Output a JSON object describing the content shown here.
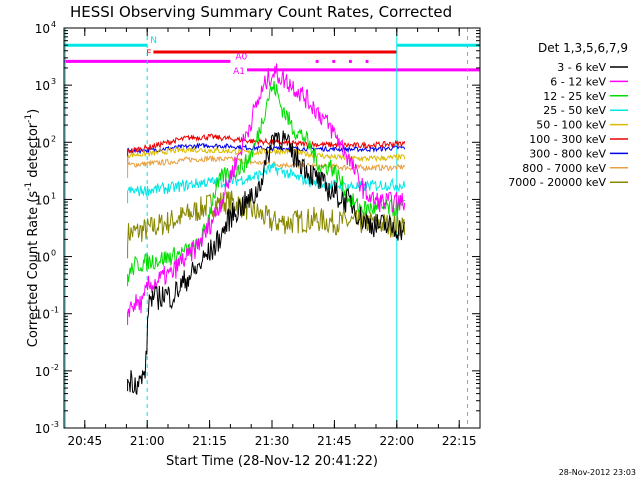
{
  "chart_data": {
    "type": "line",
    "title": "HESSI Observing Summary Count Rates, Corrected",
    "xlabel": "Start Time (28-Nov-12 20:41:22)",
    "ylabel_prefix": "Corrected Count Rate (s",
    "ylabel_sup1": "-1",
    "ylabel_mid": " detector",
    "ylabel_sup2": "-1",
    "ylabel_suffix": ")",
    "footer": "28-Nov-2012 23:03",
    "x_unit": "minutes after 20:00 UT",
    "xlim": [
      40,
      140
    ],
    "ylim": [
      0.001,
      10000
    ],
    "y_scale": "log",
    "x_ticks": [
      {
        "value": 45,
        "label": "20:45"
      },
      {
        "value": 60,
        "label": "21:00"
      },
      {
        "value": 75,
        "label": "21:15"
      },
      {
        "value": 90,
        "label": "21:30"
      },
      {
        "value": 105,
        "label": "21:45"
      },
      {
        "value": 120,
        "label": "22:00"
      },
      {
        "value": 135,
        "label": "22:15"
      }
    ],
    "y_ticks": [
      {
        "value": 0.001,
        "base": "10",
        "exp": "-3"
      },
      {
        "value": 0.01,
        "base": "10",
        "exp": "-2"
      },
      {
        "value": 0.1,
        "base": "10",
        "exp": "-1"
      },
      {
        "value": 1,
        "base": "10",
        "exp": "0"
      },
      {
        "value": 10,
        "base": "10",
        "exp": "1"
      },
      {
        "value": 100,
        "base": "10",
        "exp": "2"
      },
      {
        "value": 1000,
        "base": "10",
        "exp": "3"
      },
      {
        "value": 10000,
        "base": "10",
        "exp": "4"
      }
    ],
    "legend_title": "Det 1,3,5,6,7,9",
    "legend_position": "right",
    "series": [
      {
        "name": "3 - 6 keV",
        "color": "#000000",
        "x": [
          55.3,
          56,
          58,
          59.2,
          59.6,
          60,
          60.3,
          61,
          62,
          64,
          66,
          68,
          70,
          72,
          74,
          76,
          78,
          80,
          82,
          84,
          86,
          88,
          89.5,
          90.5,
          91.5,
          93,
          95,
          97,
          99,
          101,
          103,
          105,
          107,
          109,
          111,
          113,
          115,
          117,
          119,
          121,
          122
        ],
        "y": [
          0.006,
          0.007,
          0.006,
          0.008,
          0.012,
          0.03,
          0.15,
          0.2,
          0.18,
          0.22,
          0.2,
          0.3,
          0.45,
          0.6,
          1.0,
          1.4,
          2.5,
          5.0,
          7.0,
          9.0,
          12,
          30,
          80,
          140,
          130,
          110,
          60,
          45,
          30,
          22,
          16,
          13,
          10,
          9,
          5,
          4,
          3.5,
          3.5,
          3.2,
          3.0,
          2.8
        ]
      },
      {
        "name": "6 - 12 keV",
        "color": "#ff00ff",
        "x": [
          55.3,
          57,
          59,
          60,
          62,
          64,
          66,
          68,
          70,
          72,
          74,
          76,
          78,
          80,
          82,
          84,
          86,
          88,
          89,
          90,
          91,
          92,
          94,
          96,
          98,
          100,
          102,
          104,
          106,
          108,
          110,
          112,
          114,
          116,
          118,
          120,
          122
        ],
        "y": [
          0.12,
          0.15,
          0.15,
          0.3,
          0.35,
          0.45,
          0.5,
          0.8,
          1.0,
          1.5,
          2.5,
          5.0,
          10,
          25,
          60,
          150,
          400,
          900,
          1300,
          1600,
          1650,
          1400,
          1100,
          850,
          600,
          420,
          280,
          180,
          110,
          60,
          30,
          15,
          10,
          9,
          9,
          9,
          9
        ]
      },
      {
        "name": "12 - 25 keV",
        "color": "#00dd00",
        "x": [
          55.3,
          57,
          60,
          63,
          66,
          69,
          72,
          74,
          76,
          78,
          80,
          82,
          84,
          86,
          88,
          89,
          90,
          91,
          92,
          94,
          95,
          96,
          98,
          100,
          102,
          104,
          106,
          108,
          110,
          112,
          114,
          116,
          118,
          120,
          122
        ],
        "y": [
          0.45,
          0.7,
          0.8,
          0.9,
          1.0,
          1.2,
          1.5,
          3.0,
          12,
          25,
          30,
          35,
          45,
          90,
          300,
          600,
          900,
          850,
          450,
          250,
          180,
          150,
          120,
          60,
          35,
          40,
          25,
          12,
          8,
          7,
          7,
          7,
          7,
          7,
          7
        ]
      },
      {
        "name": "25 - 50 keV",
        "color": "#00e5e5",
        "x": [
          55.3,
          58,
          62,
          66,
          70,
          74,
          78,
          82,
          86,
          88,
          90,
          92,
          94,
          96,
          98,
          100,
          104,
          108,
          112,
          116,
          120,
          122
        ],
        "y": [
          14,
          14,
          15,
          16,
          18,
          20,
          20,
          22,
          25,
          30,
          35,
          32,
          28,
          24,
          22,
          20,
          18,
          17,
          17,
          18,
          18,
          17
        ]
      },
      {
        "name": "50 - 100 keV",
        "color": "#ddbb00",
        "x": [
          55.3,
          60,
          65,
          70,
          75,
          80,
          85,
          90,
          95,
          100,
          105,
          110,
          115,
          120,
          122
        ],
        "y": [
          60,
          62,
          70,
          75,
          72,
          70,
          66,
          70,
          68,
          60,
          55,
          52,
          52,
          54,
          55
        ]
      },
      {
        "name": "100 - 300 keV",
        "color": "#ee0000",
        "x": [
          55.3,
          60,
          65,
          70,
          75,
          80,
          85,
          90,
          95,
          100,
          105,
          110,
          115,
          120,
          122
        ],
        "y": [
          70,
          80,
          100,
          120,
          125,
          115,
          105,
          100,
          95,
          92,
          90,
          88,
          90,
          95,
          95
        ]
      },
      {
        "name": "300 - 800 keV",
        "color": "#0000ee",
        "x": [
          55.3,
          60,
          65,
          70,
          75,
          80,
          85,
          90,
          95,
          100,
          105,
          110,
          115,
          120,
          122
        ],
        "y": [
          70,
          72,
          78,
          85,
          88,
          85,
          80,
          78,
          78,
          77,
          76,
          75,
          76,
          80,
          80
        ]
      },
      {
        "name": "800 - 7000 keV",
        "color": "#e8a040",
        "x": [
          55.3,
          60,
          65,
          70,
          75,
          80,
          85,
          90,
          95,
          100,
          105,
          110,
          115,
          120,
          122
        ],
        "y": [
          40,
          42,
          45,
          50,
          52,
          50,
          45,
          42,
          40,
          38,
          37,
          36,
          36,
          36,
          38
        ]
      },
      {
        "name": "7000 - 20000 keV",
        "color": "#888800",
        "x": [
          55.3,
          60,
          65,
          70,
          75,
          78,
          80,
          82,
          84,
          86,
          88,
          90,
          95,
          100,
          105,
          110,
          115,
          120,
          122
        ],
        "y": [
          2.5,
          3.0,
          4.0,
          5.5,
          8.0,
          9.0,
          9.0,
          8.5,
          7.0,
          6.0,
          5.0,
          4.0,
          4.0,
          4.5,
          4.0,
          4.0,
          3.8,
          3.5,
          3.5
        ]
      }
    ],
    "flag_bars": [
      {
        "label": "N",
        "color": "#00e5e5",
        "y": 5000,
        "segments": [
          [
            40,
            60
          ],
          [
            120,
            140
          ]
        ]
      },
      {
        "label": "F",
        "color": "#ee0000",
        "y": 3800,
        "segments": [
          [
            61.5,
            120
          ]
        ]
      },
      {
        "label": "A0",
        "color": "#ff00ff",
        "y": 2600,
        "segments": [
          [
            40,
            80
          ],
          [
            100.5,
            101.2
          ],
          [
            104.5,
            105.2
          ],
          [
            108.5,
            109.2
          ],
          [
            112.5,
            113.2
          ]
        ]
      },
      {
        "label": "A1",
        "color": "#ff00ff",
        "y": 1850,
        "segments": [
          [
            84,
            140
          ]
        ]
      }
    ],
    "vertical_markers": [
      {
        "x": 60,
        "color": "#00e5e5",
        "style": "dashed"
      },
      {
        "x": 120,
        "color": "#00e5e5",
        "style": "solid"
      },
      {
        "x": 137,
        "color": "#00e5e5",
        "style": "dashed"
      },
      {
        "x": 40.3,
        "color": "#00e5e5",
        "style": "solid"
      }
    ]
  }
}
